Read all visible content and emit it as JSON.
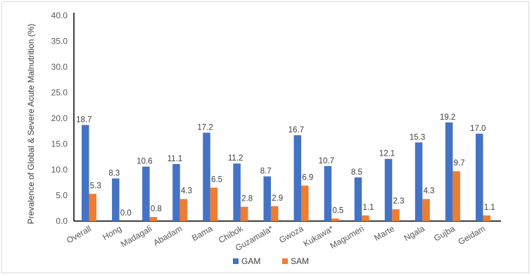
{
  "chart_data": {
    "type": "bar",
    "title": "",
    "xlabel": "",
    "ylabel": "Prevalence of Global & Severe Acute Malnutrition (%)",
    "ylim": [
      0,
      40
    ],
    "yticks": [
      "0.0",
      "5.0",
      "10.0",
      "15.0",
      "20.0",
      "25.0",
      "30.0",
      "35.0",
      "40.0"
    ],
    "grid": false,
    "legend_position": "bottom",
    "categories": [
      "Overall",
      "Hong",
      "Madagali",
      "Abadam",
      "Bama",
      "Chibok",
      "Guzamala*",
      "Gwoza",
      "Kukawa*",
      "Magumeri",
      "Marte",
      "Ngala",
      "Gujba",
      "Geidam"
    ],
    "series": [
      {
        "name": "GAM",
        "color": "#4472c4",
        "values": [
          18.7,
          8.3,
          10.6,
          11.1,
          17.2,
          11.2,
          8.7,
          16.7,
          10.7,
          8.5,
          12.1,
          15.3,
          19.2,
          17.0
        ],
        "labels": [
          "18.7",
          "8.3",
          "10.6",
          "11.1",
          "17.2",
          "11.2",
          "8.7",
          "16.7",
          "10.7",
          "8.5",
          "12.1",
          "15.3",
          "19.2",
          "17.0"
        ]
      },
      {
        "name": "SAM",
        "color": "#ed7d31",
        "values": [
          5.3,
          0.0,
          0.8,
          4.3,
          6.5,
          2.8,
          2.9,
          6.9,
          0.5,
          1.1,
          2.3,
          4.3,
          9.7,
          1.1
        ],
        "labels": [
          "5.3",
          "0.0",
          "0.8",
          "4.3",
          "6.5",
          "2.8",
          "2.9",
          "6.9",
          "0.5",
          "1.1",
          "2.3",
          "4.3",
          "9.7",
          "1.1"
        ]
      }
    ]
  }
}
